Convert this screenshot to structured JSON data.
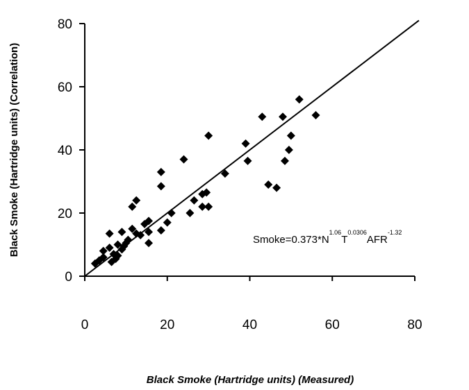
{
  "chart_data": {
    "type": "scatter",
    "x_label": "Black Smoke (Hartridge units) (Measured)",
    "y_label": "Black Smoke (Hartridge units) (Correlation)",
    "annotation": {
      "text": [
        "Smoke=0.373*N",
        "T",
        "AFR"
      ],
      "superscripts": [
        "1.06",
        "0.0306",
        "-1.32"
      ]
    },
    "x": [
      56,
      52,
      48,
      50,
      49.5,
      48.5,
      46.5,
      44.5,
      43,
      39,
      39.5,
      34,
      30,
      30,
      28.5,
      29.5,
      28.5,
      26.5,
      25.5,
      24,
      21,
      20,
      18.5,
      18.5,
      18.5,
      15.5,
      15.5,
      15.5,
      14.5,
      12.5,
      11.5,
      11.5,
      12.5,
      13.5,
      9,
      8,
      6,
      6,
      7,
      7.5,
      9,
      10,
      4.5,
      3.5,
      2.5,
      4.5,
      6.5,
      8,
      10.5,
      9.5
    ],
    "series": [
      {
        "color": "#000000",
        "values": [
          51,
          56,
          50.5,
          44.5,
          40,
          36.5,
          28,
          29,
          50.5,
          42,
          36.5,
          32.5,
          44.5,
          22,
          26,
          26.5,
          22,
          24,
          20,
          37,
          20,
          17,
          33,
          28.5,
          14.5,
          17.5,
          14,
          10.5,
          16.5,
          24,
          22,
          15,
          13.5,
          13,
          14,
          10,
          13.5,
          9,
          7,
          5.5,
          8.5,
          10.5,
          6,
          5,
          4,
          8,
          4.5,
          6.5,
          11.5,
          9.5
        ]
      }
    ],
    "reference_line": {
      "x": [
        0,
        81
      ],
      "y": [
        0,
        81
      ]
    },
    "xlim": [
      0,
      80
    ],
    "ylim": [
      0,
      80
    ],
    "xticks": [
      0,
      20,
      40,
      60,
      80
    ],
    "yticks": [
      0,
      20,
      40,
      60,
      80
    ]
  }
}
